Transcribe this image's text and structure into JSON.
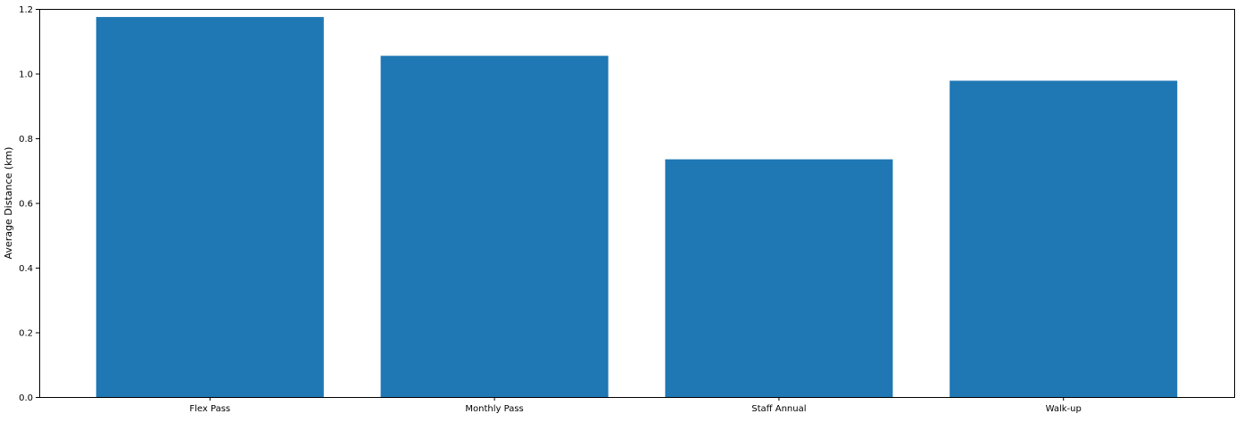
{
  "chart_data": {
    "type": "bar",
    "title": "",
    "xlabel": "",
    "ylabel": "Average Distance (km)",
    "categories": [
      "Flex Pass",
      "Monthly Pass",
      "Staff Annual",
      "Walk-up"
    ],
    "values": [
      1.175,
      1.055,
      0.735,
      0.978
    ],
    "ylim": [
      0,
      1.2
    ],
    "yticks": [
      "0.0",
      "0.2",
      "0.4",
      "0.6",
      "0.8",
      "1.0",
      "1.2"
    ],
    "bar_color": "#1f77b4",
    "grid": false,
    "legend": "none"
  }
}
